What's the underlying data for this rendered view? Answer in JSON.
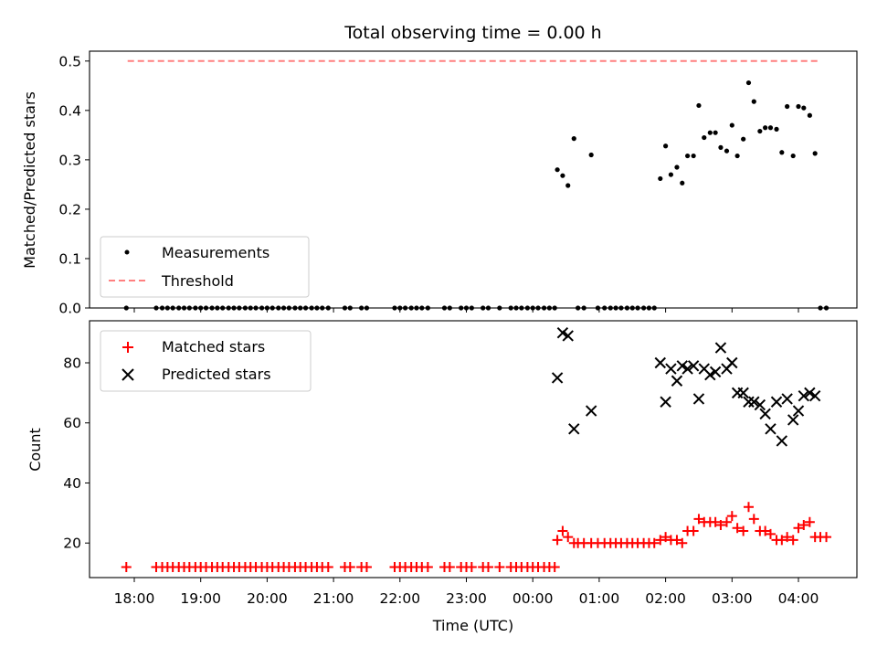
{
  "chart_data": [
    {
      "type": "scatter",
      "title": "Total observing time = 0.00 h",
      "xlabel": "",
      "ylabel": "Matched/Predicted stars",
      "ylim": [
        0,
        0.52
      ],
      "yticks": [
        "0.0",
        "0.1",
        "0.2",
        "0.3",
        "0.4",
        "0.5"
      ],
      "grid": false,
      "legend_position": "lower-left",
      "threshold": {
        "name": "Threshold",
        "value": 0.5,
        "color": "#ff8080",
        "x_range": [
          17.9,
          4.33
        ]
      },
      "series": [
        {
          "name": "Measurements",
          "color": "#000000",
          "x_time": [
            17.88,
            18.33,
            18.42,
            18.5,
            18.58,
            18.67,
            18.75,
            18.83,
            18.92,
            19.0,
            19.08,
            19.17,
            19.25,
            19.33,
            19.42,
            19.5,
            19.58,
            19.67,
            19.75,
            19.83,
            19.92,
            20.0,
            20.08,
            20.17,
            20.25,
            20.33,
            20.42,
            20.5,
            20.58,
            20.67,
            20.75,
            20.83,
            20.92,
            21.17,
            21.25,
            21.42,
            21.5,
            21.92,
            22.0,
            22.08,
            22.17,
            22.25,
            22.33,
            22.42,
            22.67,
            22.75,
            22.92,
            23.0,
            23.08,
            23.25,
            23.33,
            23.5,
            23.67,
            23.75,
            23.83,
            23.92,
            0.0,
            0.08,
            0.17,
            0.25,
            0.33,
            0.37,
            0.45,
            0.53,
            0.62,
            0.68,
            0.77,
            0.88,
            0.98,
            1.08,
            1.17,
            1.25,
            1.33,
            1.42,
            1.5,
            1.58,
            1.67,
            1.75,
            1.83,
            1.92,
            2.0,
            2.08,
            2.17,
            2.25,
            2.33,
            2.42,
            2.5,
            2.58,
            2.67,
            2.75,
            2.83,
            2.92,
            3.0,
            3.08,
            3.17,
            3.25,
            3.33,
            3.42,
            3.5,
            3.58,
            3.67,
            3.75,
            3.83,
            3.92,
            4.0,
            4.08,
            4.17,
            4.25,
            4.33,
            4.42
          ],
          "y": [
            0.0,
            0.0,
            0.0,
            0.0,
            0.0,
            0.0,
            0.0,
            0.0,
            0.0,
            0.0,
            0.0,
            0.0,
            0.0,
            0.0,
            0.0,
            0.0,
            0.0,
            0.0,
            0.0,
            0.0,
            0.0,
            0.0,
            0.0,
            0.0,
            0.0,
            0.0,
            0.0,
            0.0,
            0.0,
            0.0,
            0.0,
            0.0,
            0.0,
            0.0,
            0.0,
            0.0,
            0.0,
            0.0,
            0.0,
            0.0,
            0.0,
            0.0,
            0.0,
            0.0,
            0.0,
            0.0,
            0.0,
            0.0,
            0.0,
            0.0,
            0.0,
            0.0,
            0.0,
            0.0,
            0.0,
            0.0,
            0.0,
            0.0,
            0.0,
            0.0,
            0.0,
            0.28,
            0.268,
            0.248,
            0.343,
            0.0,
            0.0,
            0.31,
            0.0,
            0.0,
            0.0,
            0.0,
            0.0,
            0.0,
            0.0,
            0.0,
            0.0,
            0.0,
            0.0,
            0.262,
            0.328,
            0.27,
            0.285,
            0.253,
            0.308,
            0.308,
            0.41,
            0.345,
            0.355,
            0.355,
            0.325,
            0.318,
            0.37,
            0.308,
            0.342,
            0.456,
            0.418,
            0.358,
            0.365,
            0.365,
            0.362,
            0.315,
            0.408,
            0.308,
            0.408,
            0.405,
            0.39,
            0.313,
            0.0,
            0.0
          ]
        }
      ]
    },
    {
      "type": "scatter",
      "title": "",
      "xlabel": "Time (UTC)",
      "ylabel": "Count",
      "ylim": [
        8.5,
        94
      ],
      "yticks": [
        "20",
        "40",
        "60",
        "80"
      ],
      "xticks": [
        "18:00",
        "19:00",
        "20:00",
        "21:00",
        "22:00",
        "23:00",
        "00:00",
        "01:00",
        "02:00",
        "03:00",
        "04:00"
      ],
      "grid": false,
      "legend_position": "top-left",
      "series": [
        {
          "name": "Matched stars",
          "color": "#ff0000",
          "marker": "plus",
          "x_time": [
            17.88,
            18.33,
            18.42,
            18.5,
            18.58,
            18.67,
            18.75,
            18.83,
            18.92,
            19.0,
            19.08,
            19.17,
            19.25,
            19.33,
            19.42,
            19.5,
            19.58,
            19.67,
            19.75,
            19.83,
            19.92,
            20.0,
            20.08,
            20.17,
            20.25,
            20.33,
            20.42,
            20.5,
            20.58,
            20.67,
            20.75,
            20.83,
            20.92,
            21.17,
            21.25,
            21.42,
            21.5,
            21.92,
            22.0,
            22.08,
            22.17,
            22.25,
            22.33,
            22.42,
            22.67,
            22.75,
            22.92,
            23.0,
            23.08,
            23.25,
            23.33,
            23.5,
            23.67,
            23.75,
            23.83,
            23.92,
            0.0,
            0.08,
            0.17,
            0.25,
            0.33,
            0.37,
            0.45,
            0.53,
            0.62,
            0.68,
            0.77,
            0.88,
            0.98,
            1.08,
            1.17,
            1.25,
            1.33,
            1.42,
            1.5,
            1.58,
            1.67,
            1.75,
            1.83,
            1.92,
            2.0,
            2.08,
            2.17,
            2.25,
            2.33,
            2.42,
            2.5,
            2.58,
            2.67,
            2.75,
            2.83,
            2.92,
            3.0,
            3.08,
            3.17,
            3.25,
            3.33,
            3.42,
            3.5,
            3.58,
            3.67,
            3.75,
            3.83,
            3.92,
            4.0,
            4.08,
            4.17,
            4.25,
            4.33,
            4.42
          ],
          "y": [
            12,
            12,
            12,
            12,
            12,
            12,
            12,
            12,
            12,
            12,
            12,
            12,
            12,
            12,
            12,
            12,
            12,
            12,
            12,
            12,
            12,
            12,
            12,
            12,
            12,
            12,
            12,
            12,
            12,
            12,
            12,
            12,
            12,
            12,
            12,
            12,
            12,
            12,
            12,
            12,
            12,
            12,
            12,
            12,
            12,
            12,
            12,
            12,
            12,
            12,
            12,
            12,
            12,
            12,
            12,
            12,
            12,
            12,
            12,
            12,
            12,
            21,
            24,
            22,
            20,
            20,
            20,
            20,
            20,
            20,
            20,
            20,
            20,
            20,
            20,
            20,
            20,
            20,
            20,
            21,
            22,
            21,
            21,
            20,
            24,
            24,
            28,
            27,
            27,
            27,
            26,
            27,
            29,
            25,
            24,
            32,
            28,
            24,
            24,
            23,
            21,
            21,
            22,
            21,
            25,
            26,
            27,
            22,
            22,
            22
          ]
        },
        {
          "name": "Predicted stars",
          "color": "#000000",
          "marker": "x",
          "x_time": [
            0.37,
            0.45,
            0.53,
            0.62,
            0.88,
            1.92,
            2.0,
            2.08,
            2.17,
            2.25,
            2.33,
            2.42,
            2.5,
            2.58,
            2.67,
            2.75,
            2.83,
            2.92,
            3.0,
            3.08,
            3.17,
            3.25,
            3.33,
            3.42,
            3.5,
            3.58,
            3.67,
            3.75,
            3.83,
            3.92,
            4.0,
            4.08,
            4.17,
            4.25
          ],
          "y": [
            75,
            90,
            89,
            58,
            64,
            80,
            67,
            78,
            74,
            79,
            78,
            79,
            68,
            78,
            76,
            77,
            85,
            78,
            80,
            70,
            70,
            67,
            67,
            66,
            63,
            58,
            67,
            54,
            68,
            61,
            64,
            69,
            70,
            69
          ]
        }
      ]
    }
  ]
}
